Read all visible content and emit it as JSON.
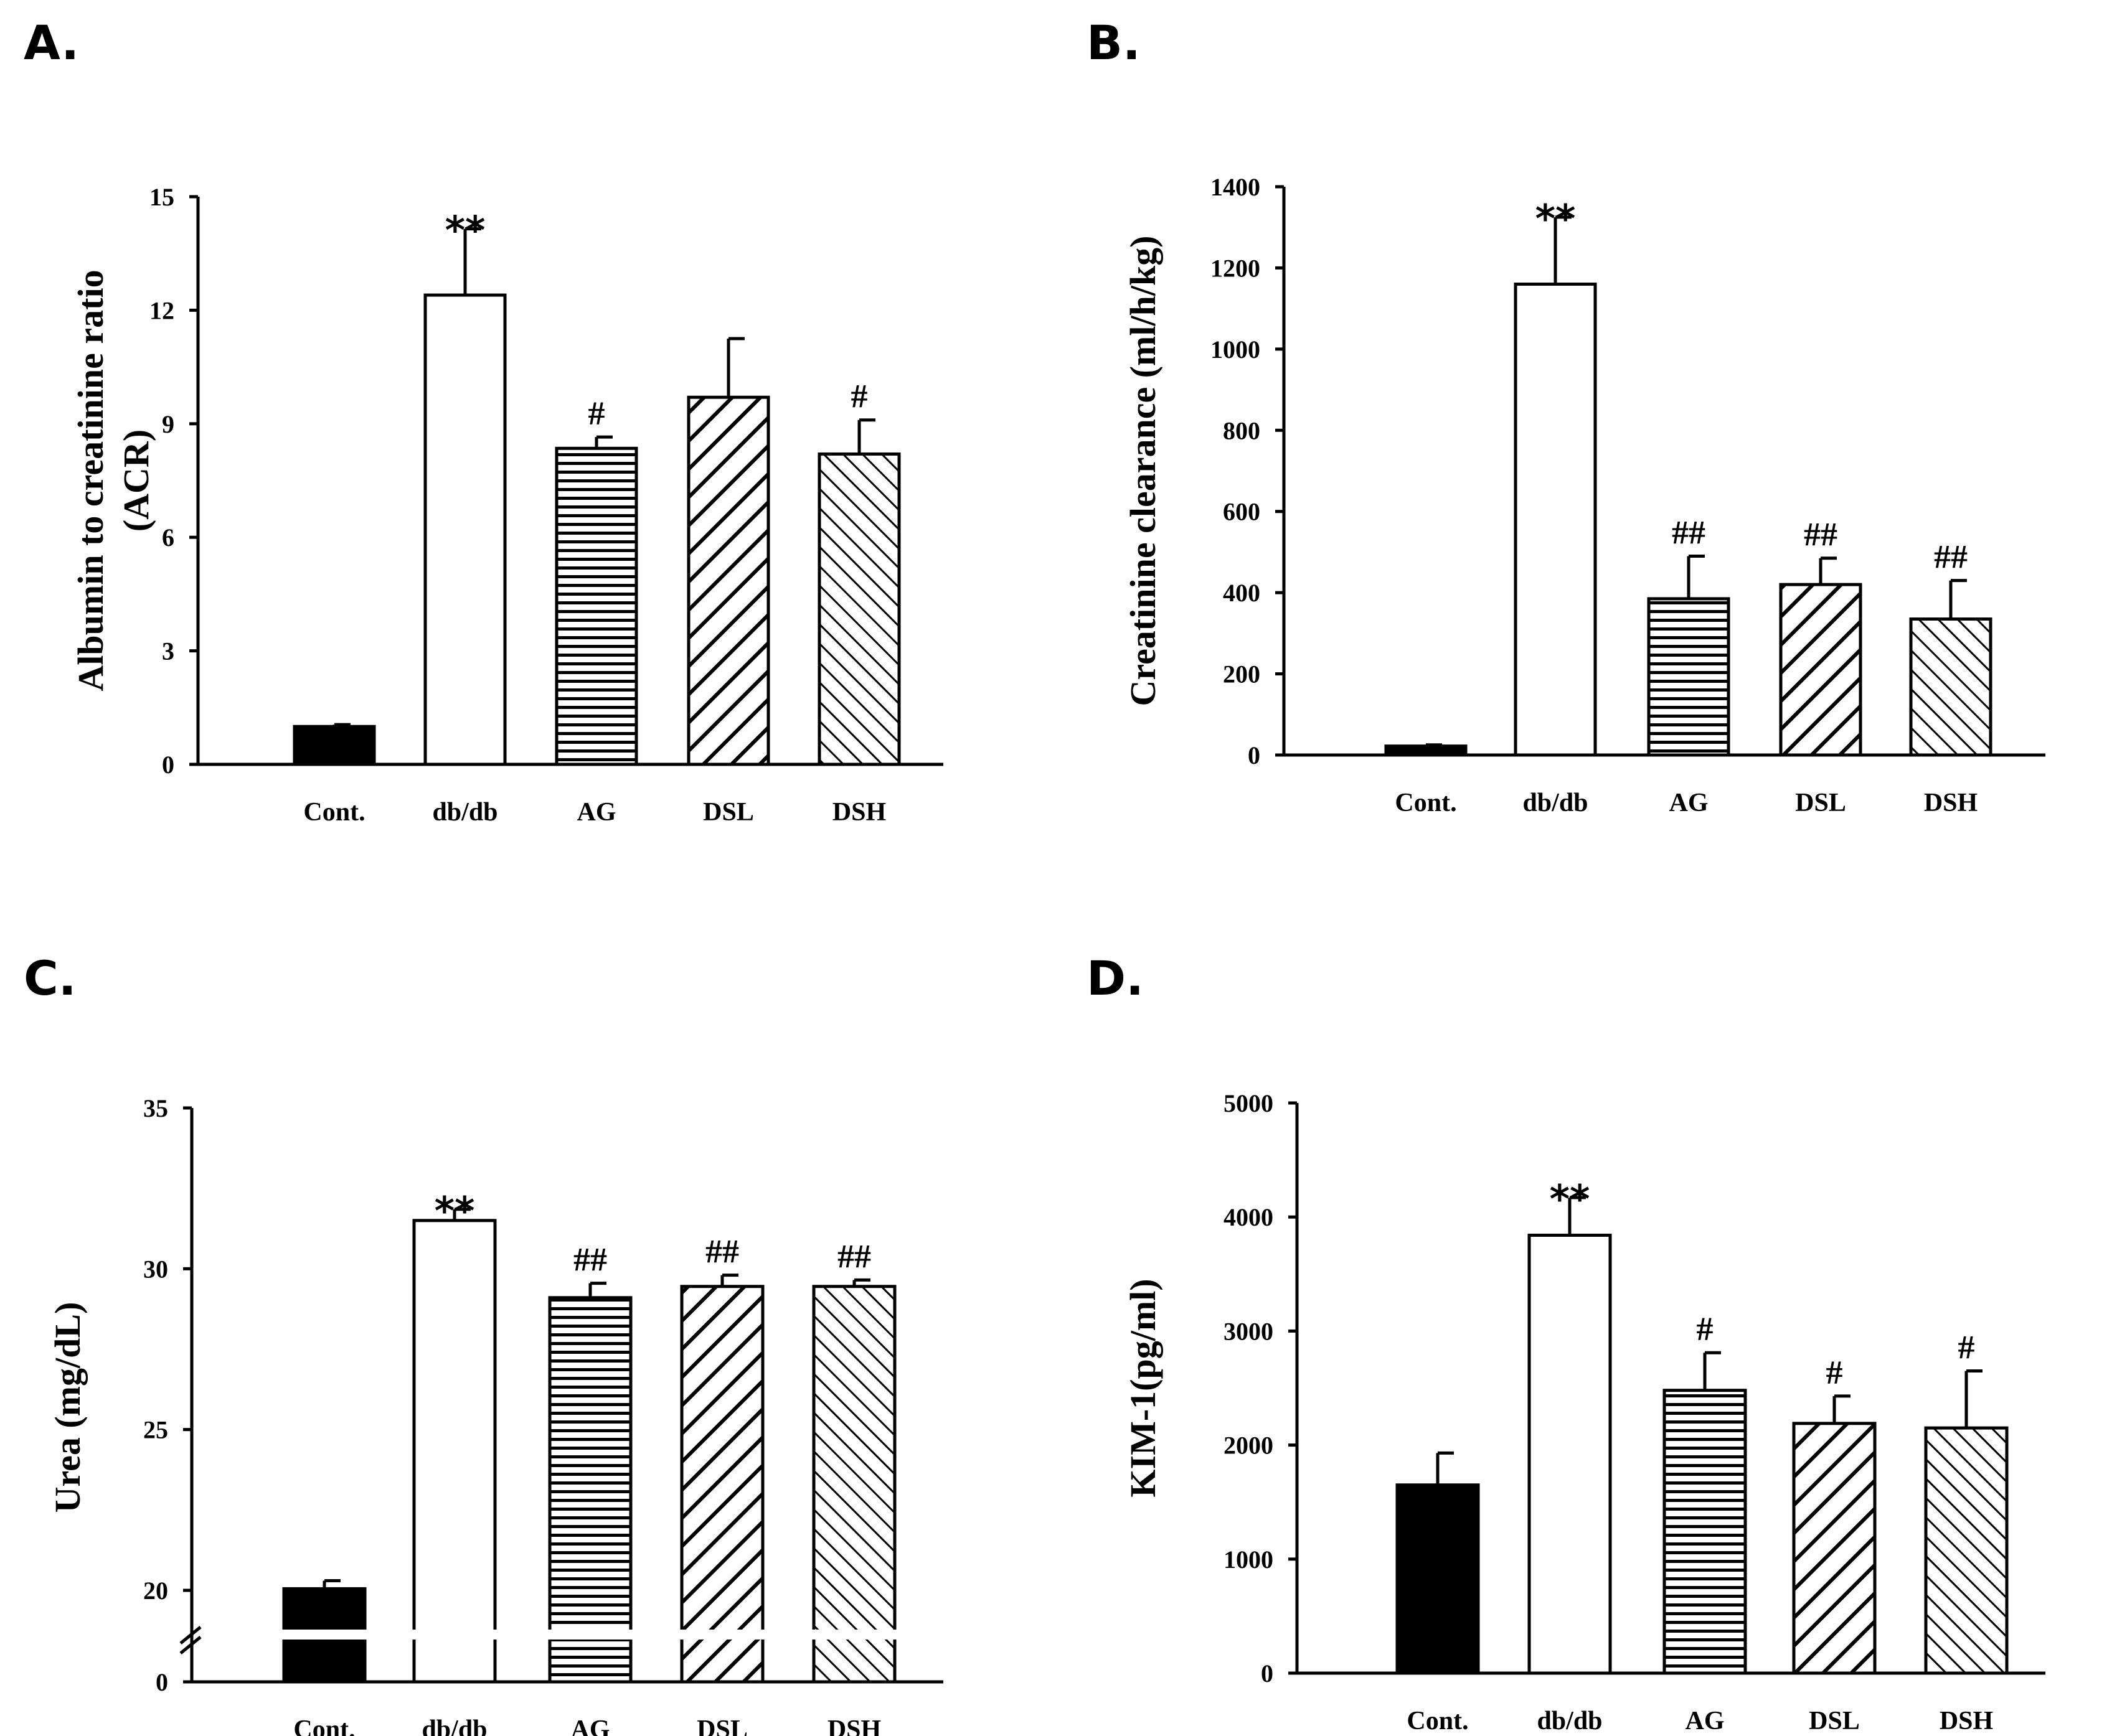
{
  "colors": {
    "ink": "#000000",
    "paper": "#ffffff"
  },
  "chart_data": [
    {
      "id": "A",
      "panel_label": "A.",
      "type": "bar",
      "ylabel_lines": [
        "Albumin to creatinine ratio",
        "(ACR)"
      ],
      "categories": [
        "Cont.",
        "db/db",
        "AG",
        "DSL",
        "DSH"
      ],
      "fills": [
        "solid",
        "white",
        "hlines",
        "diag-back",
        "diag-fwd"
      ],
      "values": [
        1.0,
        12.4,
        8.35,
        9.7,
        8.2
      ],
      "errors": [
        0.05,
        1.75,
        0.3,
        1.55,
        0.9
      ],
      "annotations": [
        "",
        "**",
        "#",
        "",
        "#"
      ],
      "ylim": [
        0,
        15
      ],
      "yticks": [
        0,
        3,
        6,
        9,
        12,
        15
      ],
      "ytick_labels": [
        "0",
        "3",
        "6",
        "9",
        "12",
        "15"
      ]
    },
    {
      "id": "B",
      "panel_label": "B.",
      "type": "bar",
      "ylabel_lines": [
        "Creatinine clearance (ml/h/kg)"
      ],
      "categories": [
        "Cont.",
        "db/db",
        "AG",
        "DSL",
        "DSH"
      ],
      "fills": [
        "solid",
        "white",
        "hlines",
        "diag-back",
        "diag-fwd"
      ],
      "values": [
        22,
        1160,
        385,
        420,
        335
      ],
      "errors": [
        3,
        165,
        105,
        65,
        95
      ],
      "annotations": [
        "",
        "**",
        "##",
        "##",
        "##"
      ],
      "ylim": [
        0,
        1400
      ],
      "yticks": [
        0,
        200,
        400,
        600,
        800,
        1000,
        1200,
        1400
      ],
      "ytick_labels": [
        "0",
        "200",
        "400",
        "600",
        "800",
        "1000",
        "1200",
        "1400"
      ]
    },
    {
      "id": "C",
      "panel_label": "C.",
      "type": "bar",
      "ylabel_lines": [
        "Urea (mg/dL)"
      ],
      "categories": [
        "Cont.",
        "db/db",
        "AG",
        "DSL",
        "DSH"
      ],
      "fills": [
        "solid",
        "white",
        "hlines",
        "diag-back",
        "diag-fwd"
      ],
      "values": [
        20.05,
        31.5,
        29.1,
        29.45,
        29.45
      ],
      "errors": [
        0.25,
        0.35,
        0.45,
        0.35,
        0.2
      ],
      "annotations": [
        "",
        "**",
        "##",
        "##",
        "##"
      ],
      "ylim": [
        0,
        35
      ],
      "axis_break": [
        0,
        20
      ],
      "yticks": [
        0,
        20,
        25,
        30,
        35
      ],
      "ytick_labels": [
        "0",
        "20",
        "25",
        "30",
        "35"
      ]
    },
    {
      "id": "D",
      "panel_label": "D.",
      "type": "bar",
      "ylabel_lines": [
        "KIM-1(pg/ml)"
      ],
      "categories": [
        "Cont.",
        "db/db",
        "AG",
        "DSL",
        "DSH"
      ],
      "fills": [
        "solid",
        "white",
        "hlines",
        "diag-back",
        "diag-fwd"
      ],
      "values": [
        1650,
        3840,
        2480,
        2190,
        2150
      ],
      "errors": [
        280,
        330,
        330,
        240,
        500
      ],
      "annotations": [
        "",
        "**",
        "#",
        "#",
        "#"
      ],
      "ylim": [
        0,
        5000
      ],
      "yticks": [
        0,
        1000,
        2000,
        3000,
        4000,
        5000
      ],
      "ytick_labels": [
        "0",
        "1000",
        "2000",
        "3000",
        "4000",
        "5000"
      ]
    }
  ]
}
